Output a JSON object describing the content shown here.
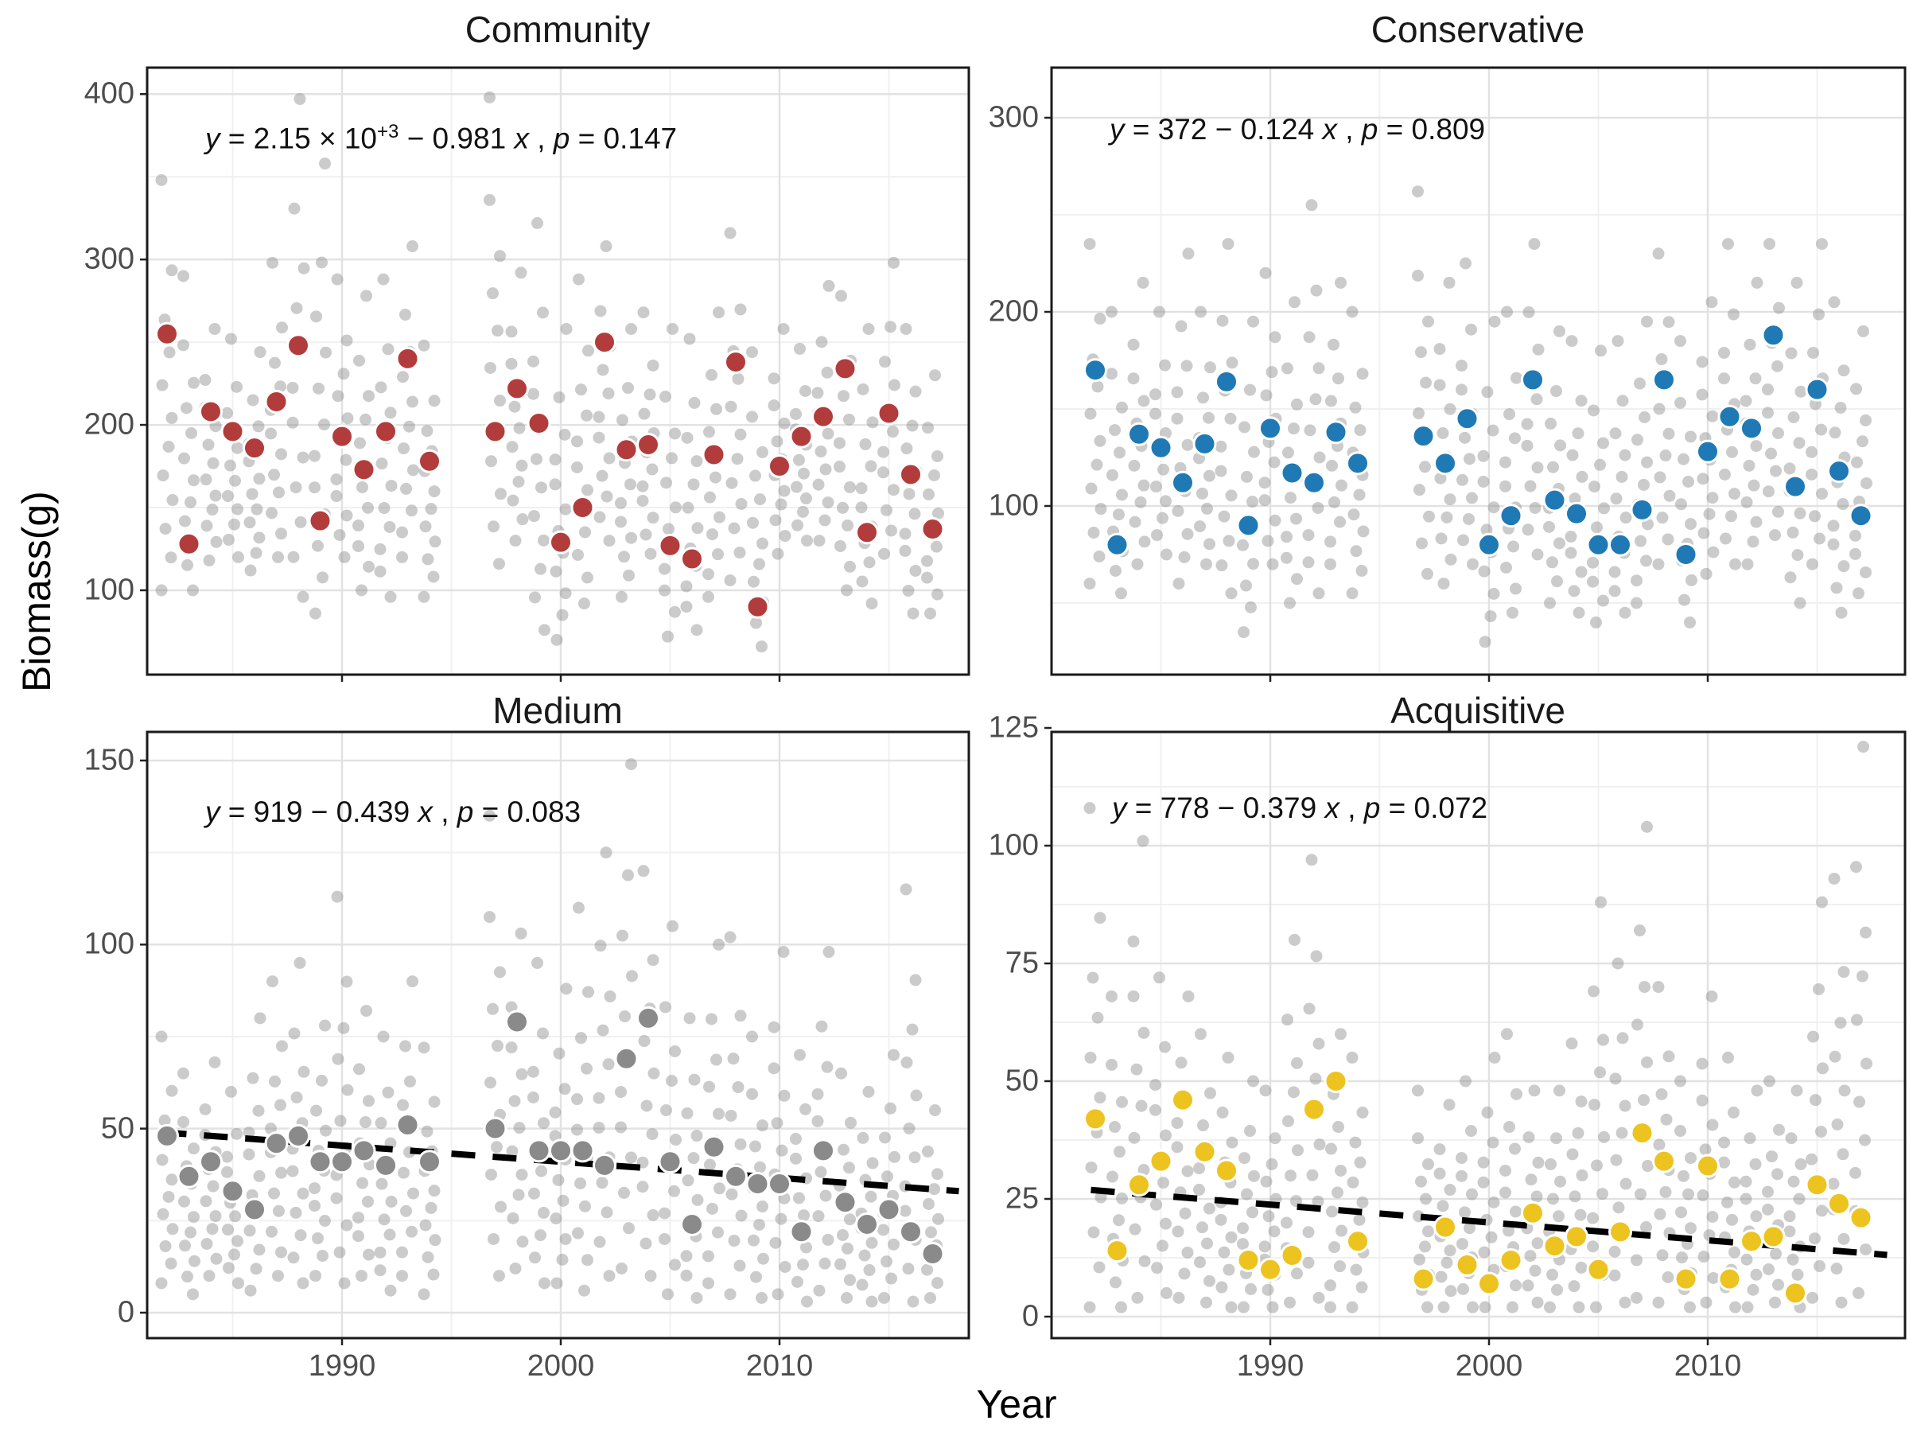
{
  "chart_data": {
    "type": "scatter",
    "xlabel": "Year",
    "ylabel": "Biomass(g)",
    "x_ticks": [
      1990,
      2000,
      2010
    ],
    "x_minor": [
      1985,
      1995,
      2005,
      2015
    ],
    "xlim": [
      1981,
      2018.7
    ],
    "years": [
      1982,
      1983,
      1984,
      1985,
      1986,
      1987,
      1988,
      1989,
      1990,
      1991,
      1992,
      1993,
      1994,
      1997,
      1998,
      1999,
      2000,
      2001,
      2002,
      2003,
      2004,
      2005,
      2006,
      2007,
      2008,
      2009,
      2010,
      2011,
      2012,
      2013,
      2014,
      2015,
      2016,
      2017
    ],
    "colors": {
      "gray_points": "#8c8c8c",
      "grid_major": "#e2e2e2",
      "grid_minor": "#f0f0f0",
      "panel_border": "#1a1a1a",
      "trend_line": "#000000"
    },
    "panels": [
      {
        "key": "community",
        "title": "Community",
        "equation": "y = 2.15 × 10⁺³ − 0.981 x , p = 0.147",
        "intercept": 2150,
        "slope": -0.981,
        "p_value": 0.147,
        "mean_color": "#b23c3c",
        "show_trend": false,
        "y_ticks": [
          100,
          200,
          300,
          400
        ],
        "y_minor": [
          150,
          250,
          350
        ],
        "ylim": [
          49,
          416
        ],
        "means": [
          255,
          128,
          208,
          196,
          186,
          214,
          248,
          142,
          193,
          173,
          196,
          240,
          178,
          196,
          222,
          201,
          129,
          150,
          250,
          185,
          188,
          127,
          119,
          182,
          238,
          90,
          175,
          193,
          205,
          234,
          135,
          207,
          170,
          137
        ],
        "col_min": [
          100,
          100,
          118,
          120,
          112,
          120,
          96,
          86,
          120,
          100,
          96,
          120,
          96,
          116,
          130,
          76,
          70,
          92,
          130,
          96,
          122,
          72,
          76,
          96,
          106,
          66,
          122,
          130,
          130,
          100,
          92,
          122,
          86,
          86
        ],
        "col_max": [
          348,
          290,
          258,
          252,
          244,
          298,
          397,
          358,
          288,
          278,
          288,
          308,
          248,
          398,
          292,
          322,
          258,
          288,
          308,
          258,
          268,
          258,
          252,
          268,
          316,
          244,
          258,
          246,
          284,
          278,
          258,
          298,
          258,
          230
        ]
      },
      {
        "key": "conservative",
        "title": "Conservative",
        "equation": "y = 372 − 0.124 x , p = 0.809",
        "intercept": 372,
        "slope": -0.124,
        "p_value": 0.809,
        "mean_color": "#1f79b5",
        "show_trend": false,
        "y_ticks": [
          100,
          200,
          300
        ],
        "y_minor": [
          50,
          150,
          250
        ],
        "ylim": [
          13,
          326
        ],
        "means": [
          170,
          80,
          137,
          130,
          112,
          132,
          164,
          90,
          140,
          117,
          112,
          138,
          122,
          136,
          122,
          145,
          80,
          95,
          165,
          103,
          96,
          80,
          80,
          98,
          165,
          75,
          128,
          146,
          140,
          188,
          110,
          160,
          118,
          95
        ],
        "col_min": [
          60,
          55,
          70,
          75,
          60,
          70,
          55,
          35,
          70,
          50,
          55,
          70,
          55,
          65,
          60,
          70,
          30,
          45,
          75,
          50,
          45,
          40,
          45,
          50,
          70,
          40,
          65,
          70,
          70,
          85,
          50,
          70,
          45,
          55
        ],
        "col_max": [
          235,
          200,
          215,
          200,
          230,
          200,
          235,
          195,
          220,
          205,
          255,
          215,
          200,
          262,
          215,
          225,
          195,
          200,
          235,
          190,
          185,
          180,
          185,
          195,
          230,
          185,
          205,
          235,
          215,
          235,
          215,
          235,
          205,
          190
        ]
      },
      {
        "key": "medium",
        "title": "Medium",
        "equation": "y = 919 − 0.439 x , p = 0.083",
        "intercept": 919,
        "slope": -0.439,
        "p_value": 0.083,
        "mean_color": "#8a8a8a",
        "show_trend": true,
        "y_ticks": [
          0,
          50,
          100,
          150
        ],
        "y_minor": [
          25,
          75,
          125
        ],
        "ylim": [
          -7,
          158
        ],
        "means": [
          48,
          37,
          41,
          33,
          28,
          46,
          48,
          41,
          41,
          44,
          40,
          51,
          41,
          50,
          79,
          44,
          44,
          44,
          40,
          69,
          80,
          41,
          24,
          45,
          37,
          35,
          35,
          22,
          44,
          30,
          24,
          28,
          22,
          16
        ],
        "col_min": [
          8,
          5,
          10,
          8,
          6,
          10,
          8,
          10,
          8,
          10,
          6,
          10,
          5,
          10,
          12,
          8,
          8,
          6,
          10,
          12,
          10,
          5,
          4,
          8,
          5,
          4,
          5,
          3,
          6,
          4,
          3,
          4,
          3,
          4
        ],
        "col_max": [
          75,
          65,
          68,
          60,
          80,
          90,
          95,
          78,
          113,
          82,
          75,
          90,
          72,
          135,
          103,
          95,
          88,
          110,
          125,
          149,
          120,
          105,
          80,
          100,
          102,
          75,
          98,
          70,
          98,
          65,
          60,
          70,
          115,
          55
        ]
      },
      {
        "key": "acquisitive",
        "title": "Acquisitive",
        "equation": "y = 778 − 0.379 x , p = 0.072",
        "intercept": 778,
        "slope": -0.379,
        "p_value": 0.072,
        "mean_color": "#edc320",
        "show_trend": true,
        "y_ticks": [
          0,
          25,
          50,
          75,
          100,
          125
        ],
        "y_minor": [
          12.5,
          37.5,
          62.5,
          87.5,
          112.5
        ],
        "ylim": [
          -5,
          124.2
        ],
        "means": [
          42,
          14,
          28,
          33,
          46,
          35,
          31,
          12,
          10,
          13,
          44,
          50,
          16,
          8,
          19,
          11,
          7,
          12,
          22,
          15,
          17,
          10,
          18,
          39,
          33,
          8,
          32,
          8,
          16,
          17,
          5,
          28,
          24,
          21
        ],
        "col_min": [
          2,
          2,
          4,
          5,
          4,
          3,
          2,
          2,
          2,
          3,
          4,
          2,
          2,
          2,
          2,
          2,
          2,
          2,
          3,
          2,
          2,
          2,
          3,
          4,
          3,
          2,
          3,
          2,
          2,
          3,
          2,
          4,
          3,
          5
        ],
        "col_max": [
          108,
          68,
          101,
          72,
          68,
          60,
          55,
          50,
          48,
          80,
          97,
          60,
          55,
          48,
          45,
          50,
          55,
          60,
          48,
          48,
          58,
          88,
          75,
          104,
          70,
          50,
          68,
          55,
          48,
          50,
          48,
          88,
          93,
          121
        ]
      }
    ]
  }
}
